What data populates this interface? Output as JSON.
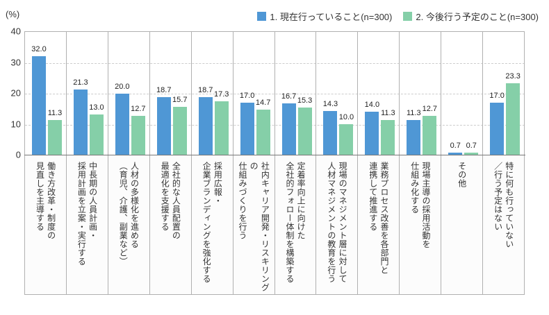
{
  "chart_data": {
    "type": "bar",
    "title": "",
    "ylabel": "(%)",
    "ylim": [
      0,
      40
    ],
    "yticks": [
      0,
      10,
      20,
      30,
      40
    ],
    "grid": "horizontal dashed gridlines at 10/20/30, solid vertical category separators",
    "legend_position": "top-right",
    "categories": [
      "働き方改革・制度の\n見直しを主導する",
      "中長期の人員計画・\n採用計画を立案・実行する",
      "人材の多様化を進める\n（育児、介護、副業など）",
      "全社的な人員配置の\n最適化を支援する",
      "採用広報・\n企業ブランディングを強化する",
      "社内キャリア開発・リスキリングの\n仕組みづくりを行う",
      "定着率向上に向けた\n全社的フォロー体制を構築する",
      "現場のマネジメント層に対して\n人材マネジメントの教育を行う",
      "業務プロセス改善を各部門と\n連携して推進する",
      "現場主導の採用活動を\n仕組み化する",
      "その他",
      "特に何も行っていない\n／行う予定はない"
    ],
    "series": [
      {
        "key": "current",
        "name": "1. 現在行っていること(n=300)",
        "color": "#4f97d5",
        "values": [
          32.0,
          21.3,
          20.0,
          18.7,
          18.7,
          17.0,
          16.7,
          14.3,
          14.0,
          11.3,
          0.7,
          17.0
        ]
      },
      {
        "key": "planned",
        "name": "2. 今後行う予定のこと(n=300)",
        "color": "#85cfa8",
        "values": [
          11.3,
          13.0,
          12.7,
          15.7,
          17.3,
          14.7,
          15.3,
          10.0,
          11.3,
          12.7,
          0.7,
          23.3
        ]
      }
    ]
  }
}
